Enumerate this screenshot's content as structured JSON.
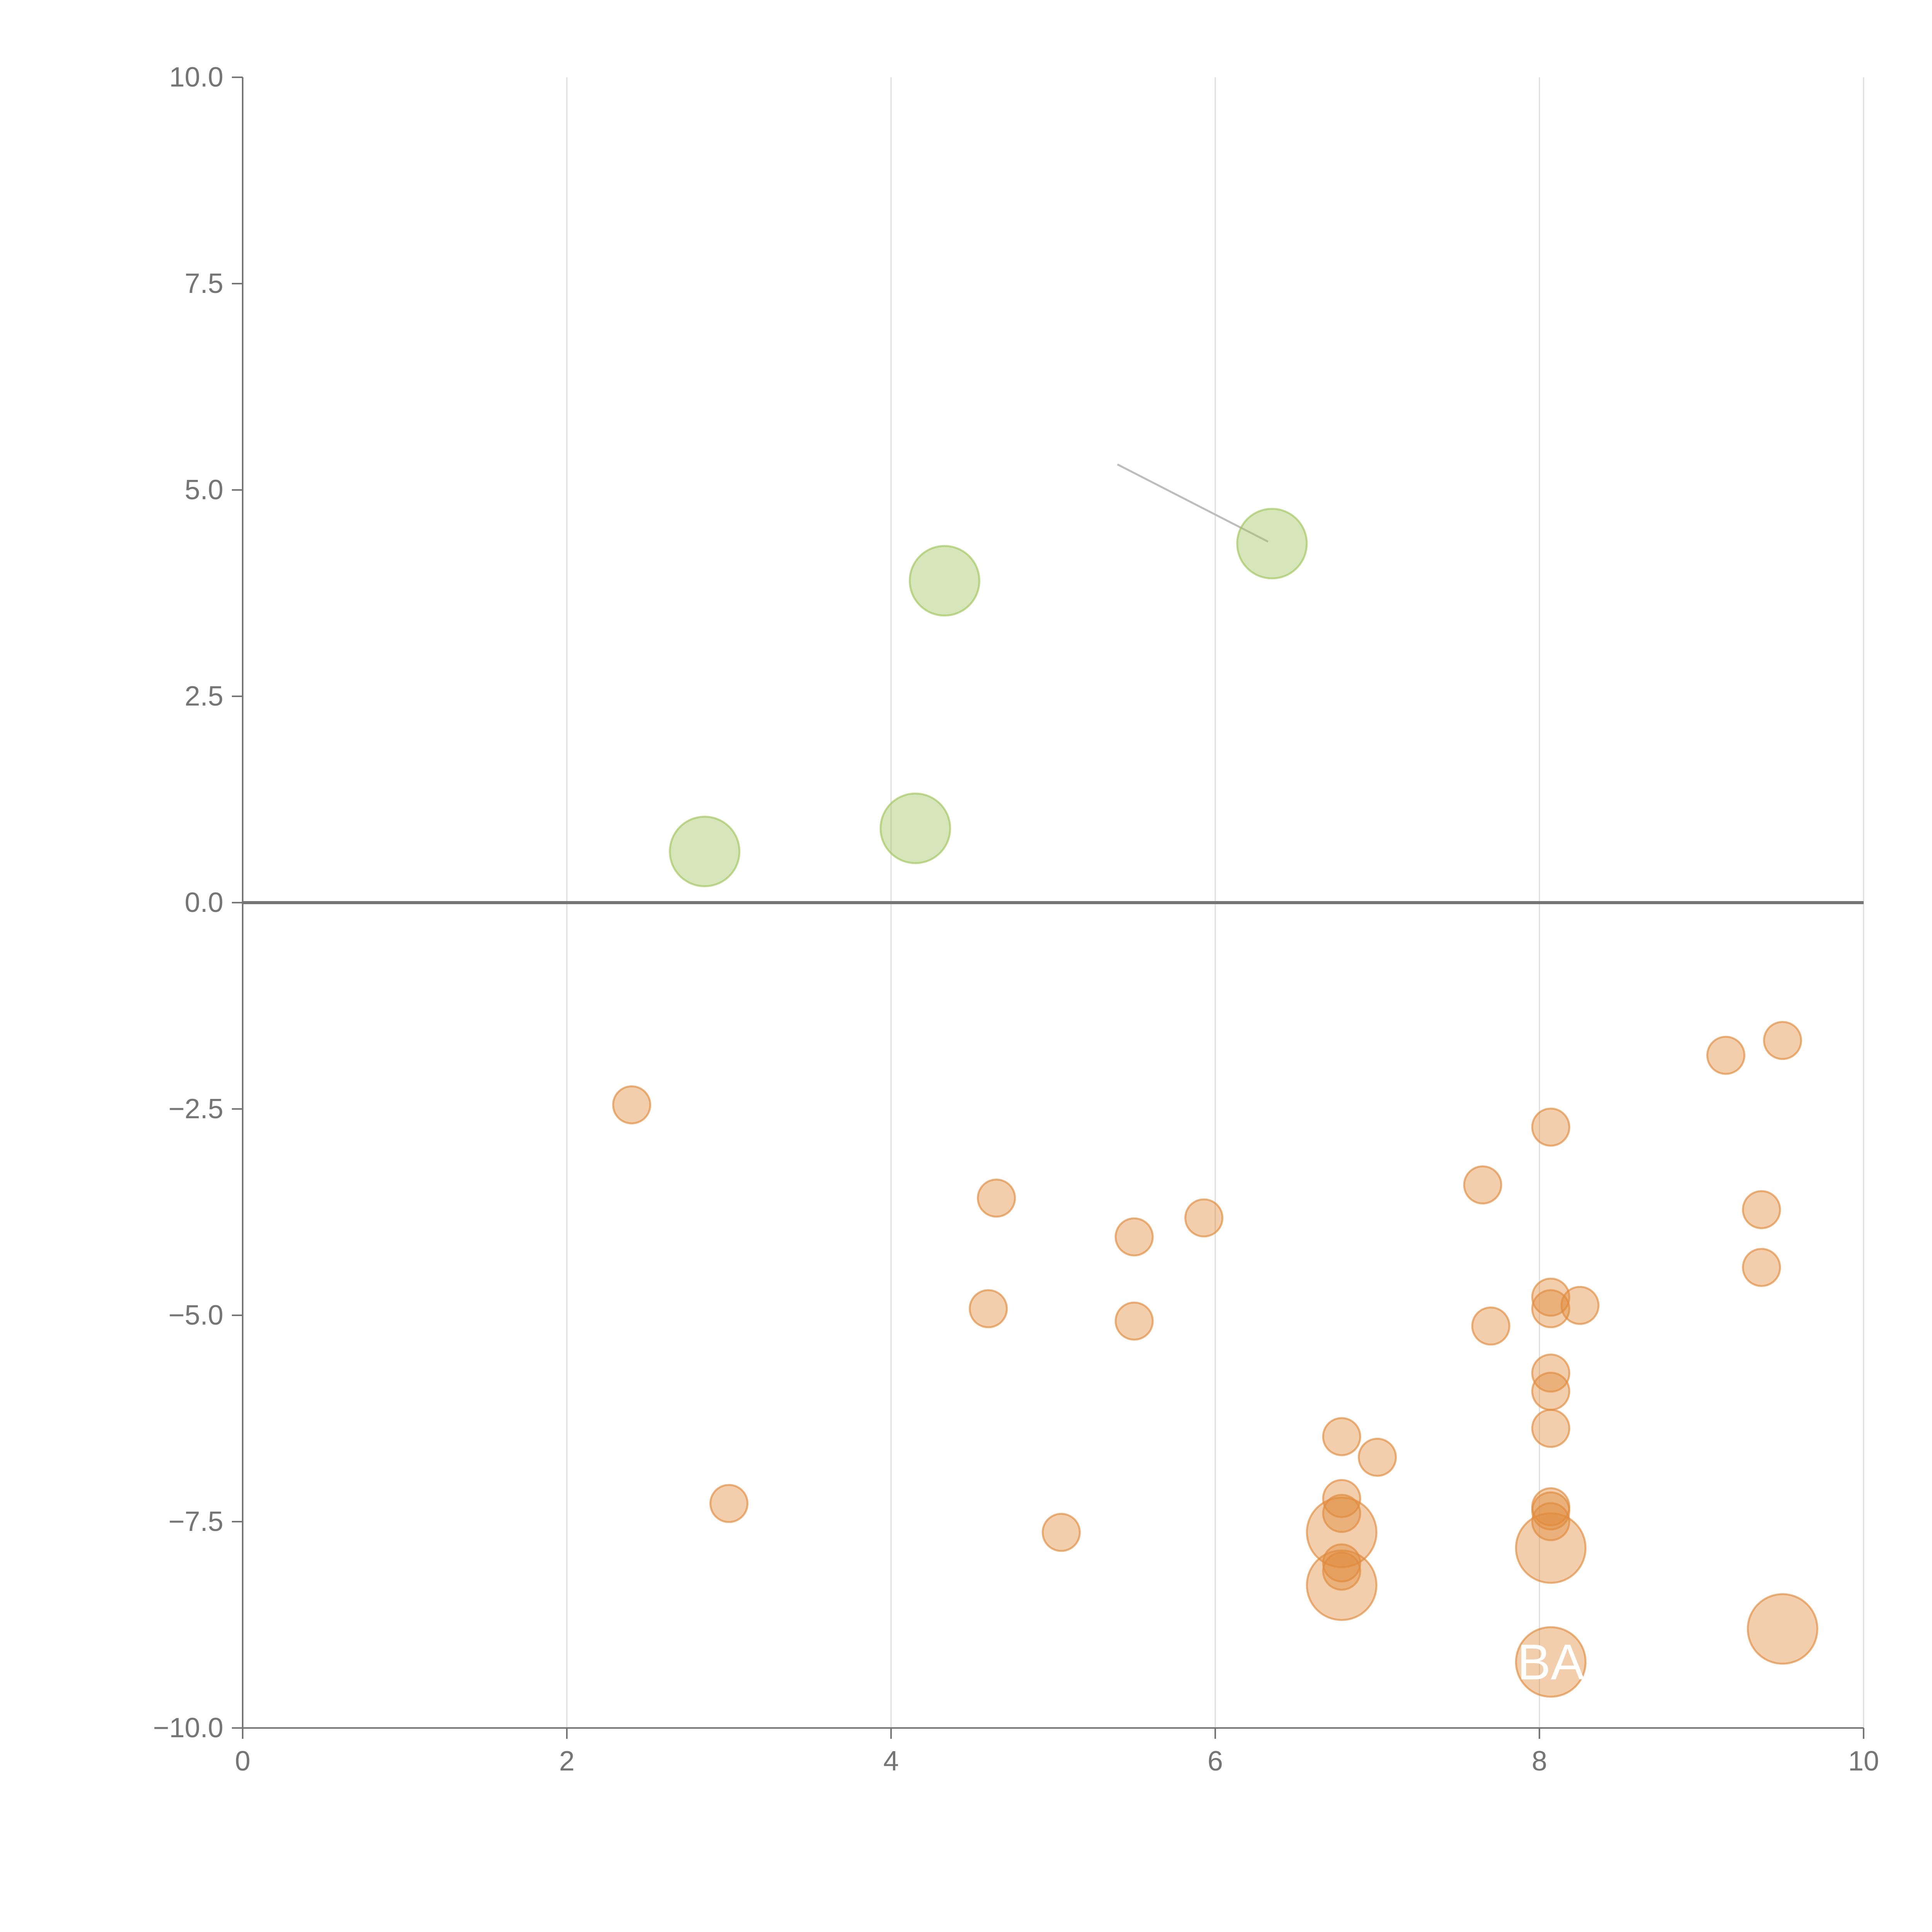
{
  "chart_data": {
    "type": "scatter",
    "title": "",
    "xlabel": "",
    "ylabel": "",
    "xlim": [
      0,
      10
    ],
    "ylim": [
      -10,
      10
    ],
    "x_ticks": [
      "0",
      "2",
      "4",
      "6",
      "8",
      "10"
    ],
    "y_ticks": [
      "10.0",
      "7.5",
      "5.0",
      "2.5",
      "0.0",
      "−2.5",
      "−5.0",
      "−7.5",
      "−10.0"
    ],
    "x_tick_values": [
      0,
      2,
      4,
      6,
      8,
      10
    ],
    "y_tick_values": [
      10,
      7.5,
      5,
      2.5,
      0,
      -2.5,
      -5,
      -7.5,
      -10
    ],
    "grid": "vertical",
    "zero_line": true,
    "colors": {
      "positive": "#9fc45a",
      "negative": "#e08a3c",
      "axis": "#757575",
      "grid": "#dddddd",
      "leader": "#bdbdbd"
    },
    "series": [
      {
        "color": "#9fc45a",
        "points": [
          {
            "x": 2.85,
            "y": 0.62,
            "size": 3
          },
          {
            "x": 4.15,
            "y": 0.9,
            "size": 3
          },
          {
            "x": 4.33,
            "y": 3.9,
            "size": 3
          },
          {
            "x": 6.35,
            "y": 4.35,
            "size": 3
          }
        ]
      },
      {
        "color": "#e08a3c",
        "points": [
          {
            "x": 2.4,
            "y": -2.45,
            "size": 1
          },
          {
            "x": 3.0,
            "y": -7.28,
            "size": 1
          },
          {
            "x": 4.65,
            "y": -3.58,
            "size": 1
          },
          {
            "x": 4.6,
            "y": -4.92,
            "size": 1
          },
          {
            "x": 5.05,
            "y": -7.63,
            "size": 1
          },
          {
            "x": 5.5,
            "y": -4.05,
            "size": 1
          },
          {
            "x": 5.5,
            "y": -5.07,
            "size": 1
          },
          {
            "x": 5.93,
            "y": -3.82,
            "size": 1
          },
          {
            "x": 6.78,
            "y": -6.47,
            "size": 1
          },
          {
            "x": 6.78,
            "y": -7.22,
            "size": 1
          },
          {
            "x": 6.78,
            "y": -7.4,
            "size": 1
          },
          {
            "x": 6.78,
            "y": -7.63,
            "size": 3
          },
          {
            "x": 6.78,
            "y": -8.0,
            "size": 1
          },
          {
            "x": 6.78,
            "y": -8.1,
            "size": 1
          },
          {
            "x": 6.78,
            "y": -8.27,
            "size": 3
          },
          {
            "x": 7.0,
            "y": -6.72,
            "size": 1
          },
          {
            "x": 7.65,
            "y": -3.42,
            "size": 1
          },
          {
            "x": 7.7,
            "y": -5.13,
            "size": 1
          },
          {
            "x": 8.07,
            "y": -2.72,
            "size": 1
          },
          {
            "x": 8.07,
            "y": -4.78,
            "size": 1
          },
          {
            "x": 8.07,
            "y": -4.92,
            "size": 1
          },
          {
            "x": 8.07,
            "y": -5.7,
            "size": 1
          },
          {
            "x": 8.07,
            "y": -5.92,
            "size": 1
          },
          {
            "x": 8.07,
            "y": -6.37,
            "size": 1
          },
          {
            "x": 8.07,
            "y": -7.32,
            "size": 1
          },
          {
            "x": 8.07,
            "y": -7.37,
            "size": 1
          },
          {
            "x": 8.07,
            "y": -7.5,
            "size": 1
          },
          {
            "x": 8.07,
            "y": -7.82,
            "size": 3
          },
          {
            "x": 8.07,
            "y": -9.2,
            "size": 3
          },
          {
            "x": 8.25,
            "y": -4.88,
            "size": 1
          },
          {
            "x": 9.15,
            "y": -1.85,
            "size": 1
          },
          {
            "x": 9.37,
            "y": -3.72,
            "size": 1
          },
          {
            "x": 9.37,
            "y": -4.42,
            "size": 1
          },
          {
            "x": 9.5,
            "y": -1.67,
            "size": 1
          },
          {
            "x": 9.5,
            "y": -8.8,
            "size": 3
          }
        ]
      }
    ],
    "annotations": [
      {
        "text": "BA",
        "x": 8.07,
        "y": -9.2
      }
    ]
  }
}
